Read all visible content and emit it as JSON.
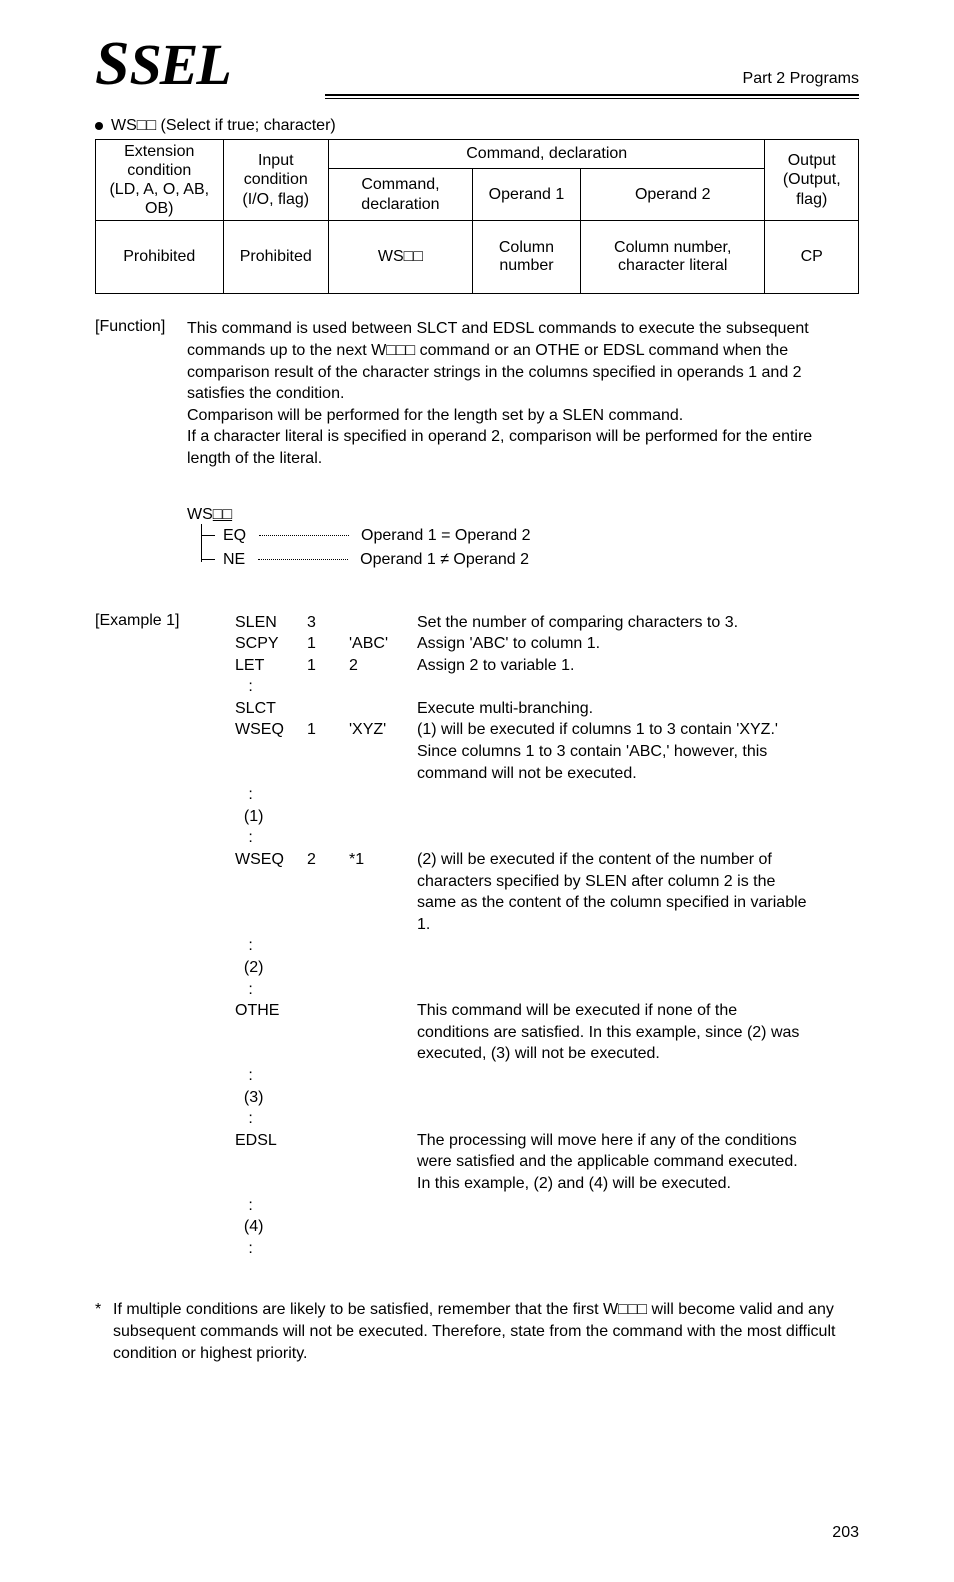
{
  "header": {
    "logo_text": "SEL",
    "part_label": "Part 2 Programs"
  },
  "bullet": {
    "title": "WS□□ (Select if true; character)"
  },
  "table": {
    "h1_extcond": "Extension condition",
    "h1_extcond2": "(LD, A, O, AB, OB)",
    "h1_inpcond": "Input condition",
    "h1_inpcond2": "(I/O, flag)",
    "h1_cmddecl": "Command, declaration",
    "h1_output": "Output",
    "h1_output2": "(Output, flag)",
    "h2_cmd": "Command, declaration",
    "h2_op1": "Operand 1",
    "h2_op2": "Operand 2",
    "d_ext": "Prohibited",
    "d_inp": "Prohibited",
    "d_cmd": "WS□□",
    "d_op1": "Column number",
    "d_op2": "Column number, character literal",
    "d_out": "CP"
  },
  "function": {
    "label": "[Function]",
    "p1": "This command is used between SLCT and EDSL commands to execute the subsequent commands up to the next W□□□ command or an OTHE or EDSL command when the comparison result of the character strings in the columns specified in operands 1 and 2 satisfies the condition.",
    "p2": "Comparison will be performed for the length set by a SLEN command.",
    "p3": "If a character literal is specified in operand 2, comparison will be performed for the entire length of the literal."
  },
  "diagram": {
    "head": "WS",
    "head_sq": "□□",
    "eq": "EQ",
    "eq_desc": "Operand 1 = Operand 2",
    "ne": "NE",
    "ne_desc": "Operand 1 ≠ Operand 2"
  },
  "example": {
    "label": "[Example 1]",
    "rows": [
      {
        "c1": "SLEN",
        "c2": "3",
        "c3": "",
        "c4": "Set the number of comparing characters to 3."
      },
      {
        "c1": "SCPY",
        "c2": "1",
        "c3": "'ABC'",
        "c4": "Assign 'ABC' to column 1."
      },
      {
        "c1": "LET",
        "c2": "1",
        "c3": "2",
        "c4": "Assign 2 to variable 1."
      },
      {
        "c1": "   :",
        "c2": "",
        "c3": "",
        "c4": ""
      },
      {
        "c1": "SLCT",
        "c2": "",
        "c3": "",
        "c4": "Execute multi-branching."
      },
      {
        "c1": "WSEQ",
        "c2": "1",
        "c3": "'XYZ'",
        "c4": "(1) will be executed if columns 1 to 3 contain 'XYZ.' Since columns 1 to 3 contain 'ABC,' however, this command will not be executed."
      },
      {
        "c1": "   :",
        "c2": "",
        "c3": "",
        "c4": ""
      },
      {
        "c1": "  (1)",
        "c2": "",
        "c3": "",
        "c4": ""
      },
      {
        "c1": "   :",
        "c2": "",
        "c3": "",
        "c4": ""
      },
      {
        "c1": "WSEQ",
        "c2": "2",
        "c3": "*1",
        "c4": "(2) will be executed if the content of the number of characters specified by SLEN after column 2 is the same as the content of the column specified in variable 1."
      },
      {
        "c1": "   :",
        "c2": "",
        "c3": "",
        "c4": ""
      },
      {
        "c1": "  (2)",
        "c2": "",
        "c3": "",
        "c4": ""
      },
      {
        "c1": "   :",
        "c2": "",
        "c3": "",
        "c4": ""
      },
      {
        "c1": "OTHE",
        "c2": "",
        "c3": "",
        "c4": "This command will be executed if none of the conditions are satisfied. In this example, since (2) was executed, (3) will not be executed."
      },
      {
        "c1": "   :",
        "c2": "",
        "c3": "",
        "c4": ""
      },
      {
        "c1": "  (3)",
        "c2": "",
        "c3": "",
        "c4": ""
      },
      {
        "c1": "   :",
        "c2": "",
        "c3": "",
        "c4": ""
      },
      {
        "c1": "EDSL",
        "c2": "",
        "c3": "",
        "c4": "The processing will move here if any of the conditions were satisfied and the applicable command executed. In this example, (2) and (4) will be executed."
      },
      {
        "c1": "   :",
        "c2": "",
        "c3": "",
        "c4": ""
      },
      {
        "c1": "  (4)",
        "c2": "",
        "c3": "",
        "c4": ""
      },
      {
        "c1": "   :",
        "c2": "",
        "c3": "",
        "c4": ""
      }
    ]
  },
  "note": {
    "text": "If multiple conditions are likely to be satisfied, remember that the first W□□□ will become valid and any subsequent commands will not be executed. Therefore, state from the command with the most difficult condition or highest priority."
  },
  "page_number": "203"
}
